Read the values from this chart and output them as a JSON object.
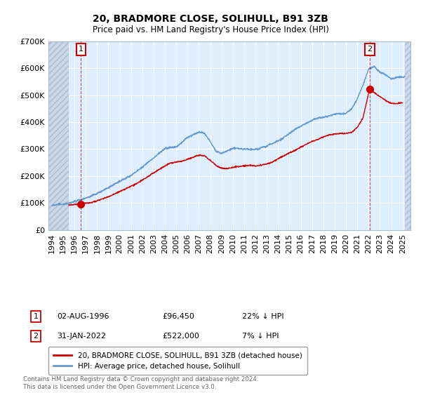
{
  "title": "20, BRADMORE CLOSE, SOLIHULL, B91 3ZB",
  "subtitle": "Price paid vs. HM Land Registry's House Price Index (HPI)",
  "legend_line1": "20, BRADMORE CLOSE, SOLIHULL, B91 3ZB (detached house)",
  "legend_line2": "HPI: Average price, detached house, Solihull",
  "annotation1_date": "02-AUG-1996",
  "annotation1_price": "£96,450",
  "annotation1_hpi": "22% ↓ HPI",
  "annotation2_date": "31-JAN-2022",
  "annotation2_price": "£522,000",
  "annotation2_hpi": "7% ↓ HPI",
  "footer": "Contains HM Land Registry data © Crown copyright and database right 2024.\nThis data is licensed under the Open Government Licence v3.0.",
  "house_color": "#cc0000",
  "hpi_color": "#6699cc",
  "chart_bg": "#ddeeff",
  "hatch_facecolor": "#c8d8e8",
  "ylim": [
    0,
    700000
  ],
  "yticks": [
    0,
    100000,
    200000,
    300000,
    400000,
    500000,
    600000,
    700000
  ],
  "point1_x": 1996.58,
  "point1_y": 96450,
  "point2_x": 2022.08,
  "point2_y": 522000,
  "xmin": 1993.7,
  "xmax": 2025.7,
  "hatch_left_end": 1995.5,
  "hatch_right_start": 2025.2
}
